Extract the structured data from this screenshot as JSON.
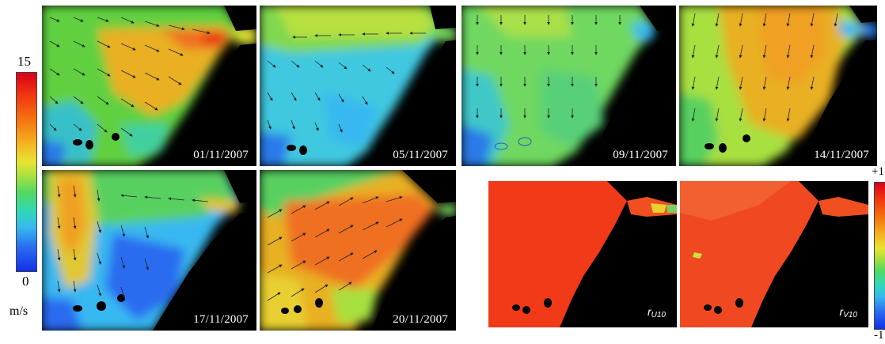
{
  "colorbar_left": {
    "max_label": "15",
    "min_label": "0",
    "unit_label": "m/s",
    "colors": [
      "#d8001a",
      "#f03010",
      "#f57a10",
      "#f5b020",
      "#e8e430",
      "#a8e040",
      "#56d860",
      "#30d8b8",
      "#38b8f0",
      "#2a6cf0",
      "#1030e8"
    ]
  },
  "colorbar_right": {
    "max_label": "+1",
    "min_label": "-1",
    "colors": [
      "#d8001a",
      "#f03010",
      "#f57a10",
      "#f5b020",
      "#e8e430",
      "#a8e040",
      "#56d860",
      "#30d8b8",
      "#38b8f0",
      "#2a6cf0",
      "#1030e8"
    ]
  },
  "panels": [
    {
      "date": "01/11/2007"
    },
    {
      "date": "05/11/2007"
    },
    {
      "date": "09/11/2007"
    },
    {
      "date": "14/11/2007"
    },
    {
      "date": "17/11/2007"
    },
    {
      "date": "20/11/2007"
    }
  ],
  "correlation_panels": [
    {
      "symbol": "r",
      "subscript": "U10"
    },
    {
      "symbol": "r",
      "subscript": "V10"
    }
  ]
}
